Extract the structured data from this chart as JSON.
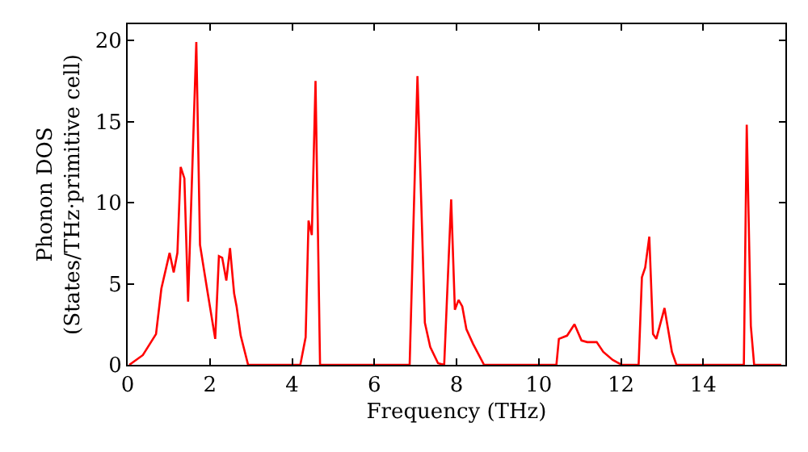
{
  "chart_data": {
    "type": "line",
    "xlabel": "Frequency (THz)",
    "ylabel": "Phonon DOS\n(States/THz·primitive cell)",
    "xlim": [
      0,
      16
    ],
    "ylim": [
      0,
      21
    ],
    "xticks": [
      0,
      2,
      4,
      6,
      8,
      10,
      12,
      14
    ],
    "yticks": [
      0,
      5,
      10,
      15,
      20
    ],
    "marker": "none",
    "line_style": "solid",
    "series": [
      {
        "color": "#ff0000",
        "x": [
          0.04,
          0.37,
          0.69,
          0.82,
          1.02,
          1.12,
          1.21,
          1.29,
          1.38,
          1.47,
          1.67,
          1.76,
          1.93,
          2.13,
          2.22,
          2.3,
          2.4,
          2.49,
          2.59,
          2.65,
          2.75,
          2.93,
          4.2,
          4.33,
          4.4,
          4.48,
          4.57,
          4.68,
          6.86,
          7.05,
          7.23,
          7.36,
          7.55,
          7.7,
          7.87,
          7.96,
          8.05,
          8.14,
          8.24,
          8.4,
          8.67,
          10.43,
          10.49,
          10.69,
          10.87,
          11.04,
          11.18,
          11.41,
          11.57,
          11.8,
          12.02,
          12.43,
          12.51,
          12.59,
          12.69,
          12.78,
          12.86,
          13.06,
          13.24,
          13.35,
          14.99,
          15.06,
          15.16,
          15.24,
          15.9
        ],
        "values": [
          0,
          0.6,
          1.9,
          4.7,
          6.9,
          5.7,
          6.9,
          12.2,
          11.5,
          3.9,
          19.9,
          7.4,
          4.7,
          1.6,
          6.7,
          6.6,
          5.2,
          7.2,
          4.4,
          3.6,
          1.8,
          0,
          0,
          1.7,
          8.9,
          8.0,
          17.5,
          0,
          0,
          17.8,
          2.6,
          1.1,
          0.1,
          0,
          10.2,
          3.4,
          4.0,
          3.6,
          2.2,
          1.3,
          0,
          0,
          1.6,
          1.8,
          2.5,
          1.5,
          1.4,
          1.4,
          0.8,
          0.3,
          0,
          0,
          5.4,
          6.0,
          7.9,
          1.9,
          1.6,
          3.5,
          0.8,
          0,
          0,
          14.8,
          2.4,
          0,
          0
        ]
      }
    ]
  }
}
